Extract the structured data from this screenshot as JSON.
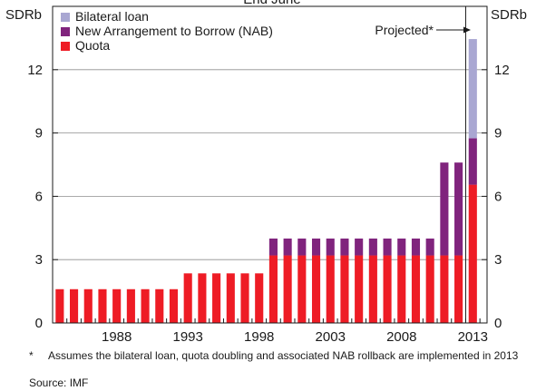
{
  "chart_data": {
    "type": "bar",
    "stacked": true,
    "title": "",
    "subtitle": "End June",
    "unit_left": "SDRb",
    "unit_right": "SDRb",
    "ylim": [
      0,
      15
    ],
    "yticks": [
      0,
      3,
      6,
      9,
      12
    ],
    "xlim": [
      1983.5,
      2014
    ],
    "x": [
      1984,
      1985,
      1986,
      1987,
      1988,
      1989,
      1990,
      1991,
      1992,
      1993,
      1994,
      1995,
      1996,
      1997,
      1998,
      1999,
      2000,
      2001,
      2002,
      2003,
      2004,
      2005,
      2006,
      2007,
      2008,
      2009,
      2010,
      2011,
      2012,
      2013
    ],
    "xtick_labels": [
      "1988",
      "1993",
      "1998",
      "2003",
      "2008",
      "2013"
    ],
    "series": [
      {
        "name": "Quota",
        "color": "#ee1c25",
        "values": [
          1.6,
          1.6,
          1.6,
          1.6,
          1.6,
          1.6,
          1.6,
          1.6,
          1.6,
          2.35,
          2.35,
          2.35,
          2.35,
          2.35,
          2.35,
          3.2,
          3.2,
          3.2,
          3.2,
          3.2,
          3.2,
          3.2,
          3.2,
          3.2,
          3.2,
          3.2,
          3.2,
          3.2,
          3.2,
          6.55
        ]
      },
      {
        "name": "New Arrangement to Borrow (NAB)",
        "color": "#80247d",
        "values": [
          0,
          0,
          0,
          0,
          0,
          0,
          0,
          0,
          0,
          0,
          0,
          0,
          0,
          0,
          0,
          0.8,
          0.8,
          0.8,
          0.8,
          0.8,
          0.8,
          0.8,
          0.8,
          0.8,
          0.8,
          0.8,
          0.8,
          4.4,
          4.4,
          2.2
        ]
      },
      {
        "name": "Bilateral loan",
        "color": "#a9a7d2",
        "values": [
          0,
          0,
          0,
          0,
          0,
          0,
          0,
          0,
          0,
          0,
          0,
          0,
          0,
          0,
          0,
          0,
          0,
          0,
          0,
          0,
          0,
          0,
          0,
          0,
          0,
          0,
          0,
          0,
          0,
          4.7
        ]
      }
    ],
    "legend_position": "top-left",
    "legend_order": [
      "Bilateral loan",
      "New Arrangement to Borrow (NAB)",
      "Quota"
    ],
    "projection": {
      "from_x": 2013,
      "label": "Projected*"
    },
    "grid": true
  },
  "footnote": {
    "marker": "*",
    "text": "Assumes the bilateral loan, quota doubling and associated NAB rollback are implemented in 2013"
  },
  "source": "Source: IMF"
}
